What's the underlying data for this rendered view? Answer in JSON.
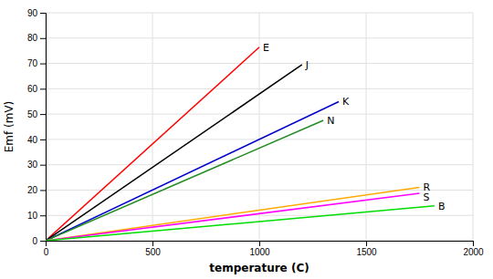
{
  "chart_data": {
    "type": "line",
    "xlabel": "temperature (C)",
    "ylabel": "Emf (mV)",
    "xlim": [
      0,
      2000
    ],
    "ylim": [
      0,
      90
    ],
    "xticks": [
      0,
      500,
      1000,
      1500,
      2000
    ],
    "yticks": [
      0,
      10,
      20,
      30,
      40,
      50,
      60,
      70,
      80,
      90
    ],
    "grid": true,
    "series": [
      {
        "name": "E",
        "color": "#ff0000",
        "x": [
          0,
          1000
        ],
        "values": [
          0,
          76.4
        ]
      },
      {
        "name": "J",
        "color": "#000000",
        "x": [
          0,
          1200
        ],
        "values": [
          0,
          69.5
        ]
      },
      {
        "name": "K",
        "color": "#0000cc",
        "x": [
          0,
          1372
        ],
        "values": [
          0,
          54.9
        ]
      },
      {
        "name": "N",
        "color": "#228B22",
        "x": [
          0,
          1300
        ],
        "values": [
          0,
          47.5
        ]
      },
      {
        "name": "R",
        "color": "#ffaa00",
        "x": [
          0,
          1750
        ],
        "values": [
          0,
          21.1
        ]
      },
      {
        "name": "S",
        "color": "#ff00ff",
        "x": [
          0,
          1750
        ],
        "values": [
          0,
          18.7
        ]
      },
      {
        "name": "B",
        "color": "#00dd00",
        "x": [
          0,
          1820
        ],
        "values": [
          0,
          13.8
        ]
      }
    ]
  }
}
